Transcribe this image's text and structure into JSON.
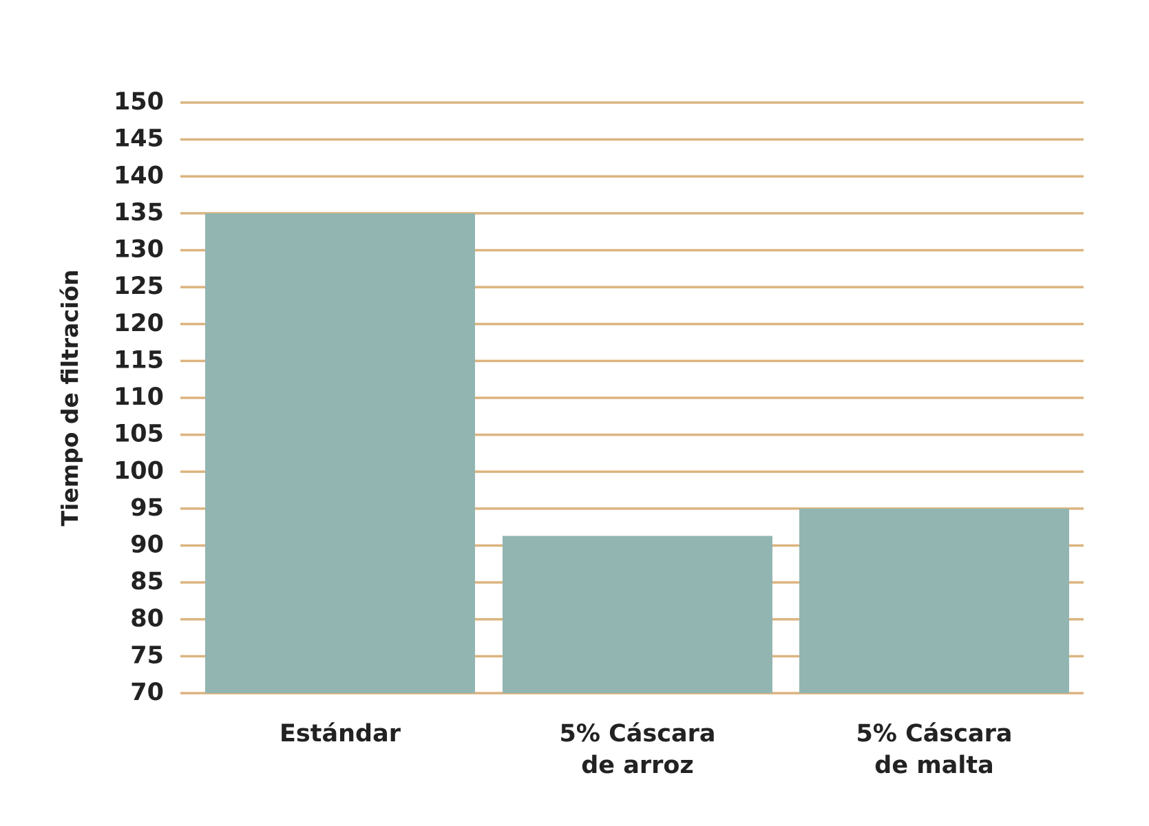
{
  "chart_data": {
    "type": "bar",
    "title": "",
    "xlabel": "",
    "ylabel": "Tiempo de filtración",
    "categories": [
      [
        "Estándar"
      ],
      [
        "5% Cáscara",
        "de arroz"
      ],
      [
        "5% Cáscara",
        "de malta"
      ]
    ],
    "values": [
      135,
      91.3,
      95
    ],
    "ylim": [
      70,
      150
    ],
    "yticks": [
      70,
      75,
      80,
      85,
      90,
      95,
      100,
      105,
      110,
      115,
      120,
      125,
      130,
      135,
      140,
      145,
      150
    ],
    "grid": true,
    "legend": "none",
    "colors": {
      "bar": "#92b5b1",
      "grid": "#dcb47f",
      "text": "#222222"
    }
  }
}
